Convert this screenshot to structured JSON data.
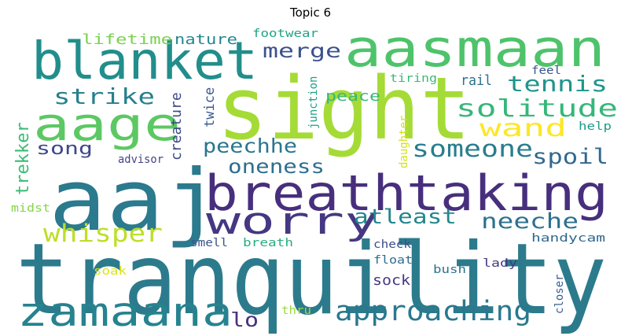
{
  "title": "Topic 6",
  "words": [
    {
      "text": "tranquility",
      "color": "#2c7b8c"
    },
    {
      "text": "aaj",
      "color": "#2b7a8d"
    },
    {
      "text": "sight",
      "color": "#a5db36"
    },
    {
      "text": "breathtaking",
      "color": "#472f7d"
    },
    {
      "text": "blanket",
      "color": "#218e8c"
    },
    {
      "text": "aasmaan",
      "color": "#4ec36b"
    },
    {
      "text": "aage",
      "color": "#5cc863"
    },
    {
      "text": "worry",
      "color": "#453781"
    },
    {
      "text": "zamaana",
      "color": "#26838f"
    },
    {
      "text": "approaching",
      "color": "#29788e"
    },
    {
      "text": "whisper",
      "color": "#bddf26"
    },
    {
      "text": "solitude",
      "color": "#35b779"
    },
    {
      "text": "someone",
      "color": "#287d8e"
    },
    {
      "text": "tennis",
      "color": "#1f958b"
    },
    {
      "text": "strike",
      "color": "#27808e"
    },
    {
      "text": "wand",
      "color": "#fde725"
    },
    {
      "text": "spoil",
      "color": "#31688e"
    },
    {
      "text": "oneness",
      "color": "#2e6f8e"
    },
    {
      "text": "peechhe",
      "color": "#2a768e"
    },
    {
      "text": "neeche",
      "color": "#2d708e"
    },
    {
      "text": "atleast",
      "color": "#24868e"
    },
    {
      "text": "trekker",
      "color": "#3bbb75"
    },
    {
      "text": "merge",
      "color": "#3b528b"
    },
    {
      "text": "song",
      "color": "#3f4889"
    },
    {
      "text": "lifetime",
      "color": "#7ad151"
    },
    {
      "text": "nature",
      "color": "#25858e"
    },
    {
      "text": "creature",
      "color": "#3e4a89"
    },
    {
      "text": "twice",
      "color": "#38598c"
    },
    {
      "text": "peace",
      "color": "#35b779"
    },
    {
      "text": "rail",
      "color": "#2d708e"
    },
    {
      "text": "lo",
      "color": "#46327e"
    },
    {
      "text": "sock",
      "color": "#443983"
    },
    {
      "text": "footwear",
      "color": "#20a486"
    },
    {
      "text": "junction",
      "color": "#1fa187"
    },
    {
      "text": "tiring",
      "color": "#3aba76"
    },
    {
      "text": "feel",
      "color": "#39568c"
    },
    {
      "text": "help",
      "color": "#1e9c89"
    },
    {
      "text": "daughter",
      "color": "#d2e21b"
    },
    {
      "text": "advisor",
      "color": "#414487"
    },
    {
      "text": "midst",
      "color": "#86d549"
    },
    {
      "text": "smell",
      "color": "#3b528b"
    },
    {
      "text": "breath",
      "color": "#27ad81"
    },
    {
      "text": "handycam",
      "color": "#31688e"
    },
    {
      "text": "check",
      "color": "#3e4c8a"
    },
    {
      "text": "float",
      "color": "#2f6c8e"
    },
    {
      "text": "lady",
      "color": "#453882"
    },
    {
      "text": "bush",
      "color": "#2c738e"
    },
    {
      "text": "soak",
      "color": "#dde318"
    },
    {
      "text": "closer",
      "color": "#365c8d"
    },
    {
      "text": "thru",
      "color": "#9bd93c"
    }
  ]
}
